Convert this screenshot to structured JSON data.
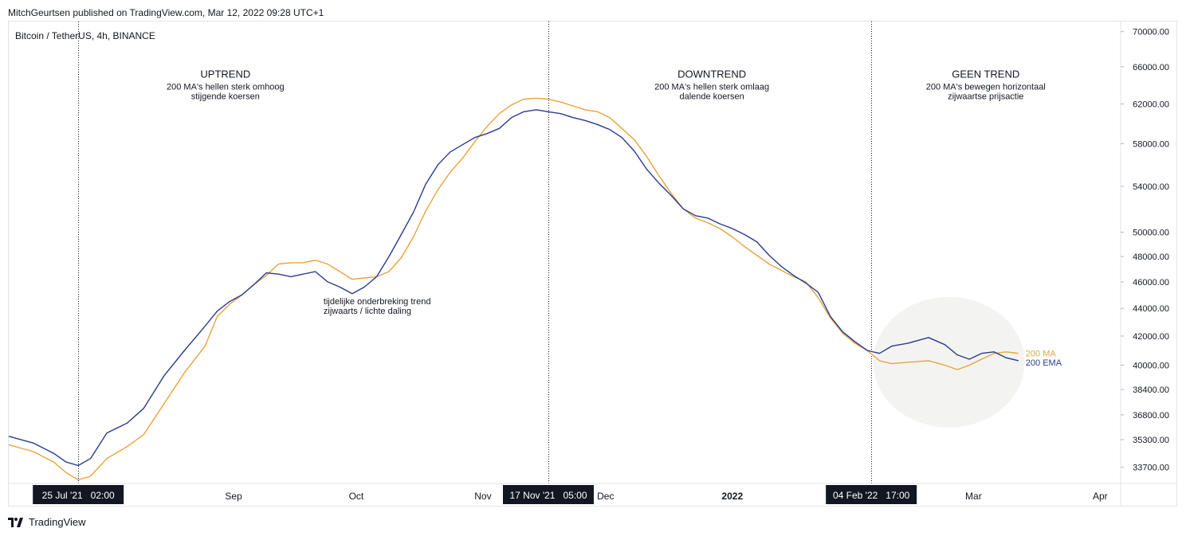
{
  "header": {
    "published": "MitchGeurtsen published on TradingView.com, Mar 12, 2022 09:28 UTC+1"
  },
  "symbol_label": "Bitcoin / TetherUS, 4h, BINANCE",
  "footer": {
    "brand": "TradingView"
  },
  "colors": {
    "ma": "#e8a33d",
    "ema": "#2a3a8f",
    "text": "#131722",
    "axis_border": "#e0e3eb",
    "highlight_bg": "#f3f4f1",
    "time_marker_bg": "#131722"
  },
  "icons": {
    "logo": "tradingview-logo-icon"
  },
  "chart_data": {
    "type": "line",
    "x_axis": {
      "labels": [
        {
          "date": "2021-09-01",
          "text": "Sep"
        },
        {
          "date": "2021-10-01",
          "text": "Oct"
        },
        {
          "date": "2021-11-01",
          "text": "Nov"
        },
        {
          "date": "2021-12-01",
          "text": "Dec"
        },
        {
          "date": "2022-01-01",
          "text": "2022",
          "bold": true
        },
        {
          "date": "2022-03-01",
          "text": "Mar"
        },
        {
          "date": "2022-04-01",
          "text": "Apr"
        }
      ],
      "range": [
        "2021-07-08",
        "2022-04-06"
      ]
    },
    "y_axis": {
      "scale": "log",
      "range": [
        32800,
        71200
      ],
      "ticks": [
        "70000.00",
        "66000.00",
        "62000.00",
        "58000.00",
        "54000.00",
        "50000.00",
        "48000.00",
        "46000.00",
        "44000.00",
        "42000.00",
        "40000.00",
        "38400.00",
        "36800.00",
        "35300.00",
        "33700.00"
      ]
    },
    "vlines": [
      {
        "date": "2021-07-25",
        "label": "25 Jul '21   02:00"
      },
      {
        "date": "2021-11-17",
        "label": "17 Nov '21   05:00"
      },
      {
        "date": "2022-02-04",
        "label": "04 Feb '22   17:00"
      }
    ],
    "annotations": [
      {
        "title": "UPTREND",
        "lines": [
          "200 MA's hellen sterk omhoog",
          "stijgende koersen"
        ],
        "date": "2021-08-30",
        "price": 64800
      },
      {
        "title": "DOWNTREND",
        "lines": [
          "200 MA's hellen sterk omlaag",
          "dalende koersen"
        ],
        "date": "2021-12-27",
        "price": 64800
      },
      {
        "title": "GEEN TREND",
        "lines": [
          "200 MA's bewegen horizontaal",
          "zijwaartse prijsactie"
        ],
        "date": "2022-03-04",
        "price": 64800
      },
      {
        "title": "",
        "lines": [
          "tijdelijke onderbreking trend",
          "zijwaarts / lichte daling"
        ],
        "date": "2021-09-23",
        "price": 44300
      }
    ],
    "highlight": {
      "center_date": "2022-02-23",
      "center_price": 40200,
      "label": ""
    },
    "series": [
      {
        "name": "200 MA",
        "color": "#e8a33d",
        "points": [
          [
            "2021-07-08",
            35000
          ],
          [
            "2021-07-14",
            34600
          ],
          [
            "2021-07-19",
            34000
          ],
          [
            "2021-07-22",
            33400
          ],
          [
            "2021-07-25",
            33000
          ],
          [
            "2021-07-28",
            33200
          ],
          [
            "2021-08-01",
            34200
          ],
          [
            "2021-08-06",
            34900
          ],
          [
            "2021-08-10",
            35600
          ],
          [
            "2021-08-15",
            37500
          ],
          [
            "2021-08-20",
            39500
          ],
          [
            "2021-08-25",
            41300
          ],
          [
            "2021-08-28",
            43400
          ],
          [
            "2021-08-31",
            44300
          ],
          [
            "2021-09-03",
            45000
          ],
          [
            "2021-09-06",
            45800
          ],
          [
            "2021-09-09",
            46500
          ],
          [
            "2021-09-12",
            47400
          ],
          [
            "2021-09-15",
            47500
          ],
          [
            "2021-09-18",
            47500
          ],
          [
            "2021-09-21",
            47700
          ],
          [
            "2021-09-24",
            47400
          ],
          [
            "2021-09-27",
            46800
          ],
          [
            "2021-09-30",
            46200
          ],
          [
            "2021-10-03",
            46300
          ],
          [
            "2021-10-06",
            46400
          ],
          [
            "2021-10-09",
            46800
          ],
          [
            "2021-10-12",
            47900
          ],
          [
            "2021-10-15",
            49600
          ],
          [
            "2021-10-18",
            51800
          ],
          [
            "2021-10-21",
            53700
          ],
          [
            "2021-10-24",
            55300
          ],
          [
            "2021-10-27",
            56600
          ],
          [
            "2021-10-30",
            58200
          ],
          [
            "2021-11-02",
            59700
          ],
          [
            "2021-11-05",
            61000
          ],
          [
            "2021-11-08",
            61900
          ],
          [
            "2021-11-11",
            62500
          ],
          [
            "2021-11-14",
            62600
          ],
          [
            "2021-11-17",
            62500
          ],
          [
            "2021-11-20",
            62200
          ],
          [
            "2021-11-23",
            61800
          ],
          [
            "2021-11-26",
            61400
          ],
          [
            "2021-11-29",
            61200
          ],
          [
            "2021-12-02",
            60600
          ],
          [
            "2021-12-05",
            59500
          ],
          [
            "2021-12-08",
            58400
          ],
          [
            "2021-12-11",
            56800
          ],
          [
            "2021-12-14",
            55000
          ],
          [
            "2021-12-17",
            53400
          ],
          [
            "2021-12-20",
            52000
          ],
          [
            "2021-12-23",
            51200
          ],
          [
            "2021-12-26",
            50800
          ],
          [
            "2021-12-29",
            50300
          ],
          [
            "2022-01-01",
            49600
          ],
          [
            "2022-01-04",
            48800
          ],
          [
            "2022-01-07",
            48100
          ],
          [
            "2022-01-10",
            47400
          ],
          [
            "2022-01-13",
            46900
          ],
          [
            "2022-01-16",
            46400
          ],
          [
            "2022-01-19",
            46000
          ],
          [
            "2022-01-22",
            44800
          ],
          [
            "2022-01-25",
            43300
          ],
          [
            "2022-01-28",
            42200
          ],
          [
            "2022-01-31",
            41500
          ],
          [
            "2022-02-03",
            41000
          ],
          [
            "2022-02-06",
            40300
          ],
          [
            "2022-02-09",
            40100
          ],
          [
            "2022-02-13",
            40200
          ],
          [
            "2022-02-18",
            40300
          ],
          [
            "2022-02-22",
            40000
          ],
          [
            "2022-02-25",
            39700
          ],
          [
            "2022-02-28",
            40000
          ],
          [
            "2022-03-03",
            40400
          ],
          [
            "2022-03-06",
            40800
          ],
          [
            "2022-03-09",
            40900
          ],
          [
            "2022-03-12",
            40800
          ]
        ]
      },
      {
        "name": "200 EMA",
        "color": "#2a3a8f",
        "points": [
          [
            "2021-07-08",
            35500
          ],
          [
            "2021-07-14",
            35100
          ],
          [
            "2021-07-19",
            34500
          ],
          [
            "2021-07-22",
            34000
          ],
          [
            "2021-07-25",
            33800
          ],
          [
            "2021-07-28",
            34200
          ],
          [
            "2021-08-01",
            35700
          ],
          [
            "2021-08-06",
            36300
          ],
          [
            "2021-08-10",
            37200
          ],
          [
            "2021-08-15",
            39300
          ],
          [
            "2021-08-20",
            41000
          ],
          [
            "2021-08-25",
            42700
          ],
          [
            "2021-08-28",
            43800
          ],
          [
            "2021-08-31",
            44500
          ],
          [
            "2021-09-03",
            45000
          ],
          [
            "2021-09-06",
            45800
          ],
          [
            "2021-09-09",
            46700
          ],
          [
            "2021-09-12",
            46600
          ],
          [
            "2021-09-15",
            46400
          ],
          [
            "2021-09-18",
            46600
          ],
          [
            "2021-09-21",
            46800
          ],
          [
            "2021-09-24",
            46000
          ],
          [
            "2021-09-27",
            45600
          ],
          [
            "2021-09-30",
            45100
          ],
          [
            "2021-10-03",
            45600
          ],
          [
            "2021-10-06",
            46400
          ],
          [
            "2021-10-09",
            48000
          ],
          [
            "2021-10-12",
            49800
          ],
          [
            "2021-10-15",
            51700
          ],
          [
            "2021-10-18",
            54200
          ],
          [
            "2021-10-21",
            56000
          ],
          [
            "2021-10-24",
            57200
          ],
          [
            "2021-10-27",
            57900
          ],
          [
            "2021-10-30",
            58600
          ],
          [
            "2021-11-02",
            59000
          ],
          [
            "2021-11-05",
            59500
          ],
          [
            "2021-11-08",
            60600
          ],
          [
            "2021-11-11",
            61200
          ],
          [
            "2021-11-14",
            61400
          ],
          [
            "2021-11-17",
            61200
          ],
          [
            "2021-11-20",
            61000
          ],
          [
            "2021-11-23",
            60600
          ],
          [
            "2021-11-26",
            60300
          ],
          [
            "2021-11-29",
            59900
          ],
          [
            "2021-12-02",
            59400
          ],
          [
            "2021-12-05",
            58600
          ],
          [
            "2021-12-08",
            57300
          ],
          [
            "2021-12-11",
            55600
          ],
          [
            "2021-12-14",
            54300
          ],
          [
            "2021-12-17",
            53200
          ],
          [
            "2021-12-20",
            52000
          ],
          [
            "2021-12-23",
            51400
          ],
          [
            "2021-12-26",
            51200
          ],
          [
            "2021-12-29",
            50700
          ],
          [
            "2022-01-01",
            50300
          ],
          [
            "2022-01-04",
            49800
          ],
          [
            "2022-01-07",
            49200
          ],
          [
            "2022-01-10",
            48100
          ],
          [
            "2022-01-13",
            47200
          ],
          [
            "2022-01-16",
            46500
          ],
          [
            "2022-01-19",
            45900
          ],
          [
            "2022-01-22",
            45200
          ],
          [
            "2022-01-25",
            43400
          ],
          [
            "2022-01-28",
            42300
          ],
          [
            "2022-01-31",
            41600
          ],
          [
            "2022-02-03",
            41000
          ],
          [
            "2022-02-06",
            40800
          ],
          [
            "2022-02-09",
            41300
          ],
          [
            "2022-02-13",
            41500
          ],
          [
            "2022-02-18",
            41900
          ],
          [
            "2022-02-22",
            41400
          ],
          [
            "2022-02-25",
            40700
          ],
          [
            "2022-02-28",
            40400
          ],
          [
            "2022-03-03",
            40800
          ],
          [
            "2022-03-06",
            40900
          ],
          [
            "2022-03-09",
            40500
          ],
          [
            "2022-03-12",
            40300
          ]
        ]
      }
    ]
  }
}
